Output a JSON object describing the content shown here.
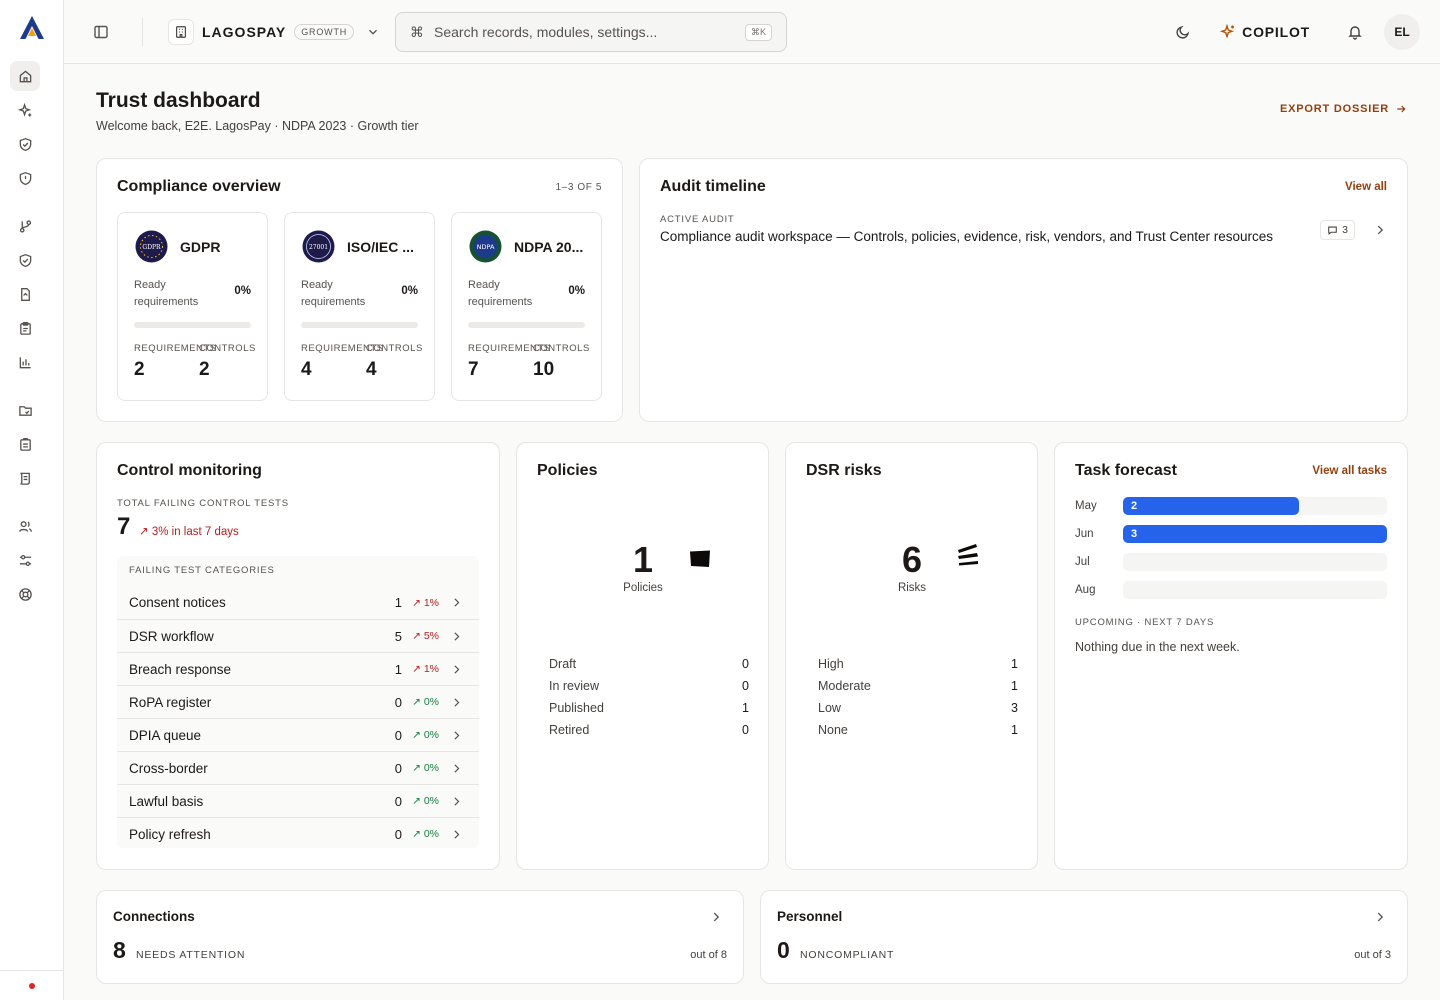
{
  "app": {
    "org_name": "LAGOSPAY",
    "plan": "GROWTH",
    "brand_color": "#1e40af",
    "accent_color": "#f59e0b"
  },
  "search": {
    "placeholder": "Search records, modules, settings...",
    "shortcut": "⌘K"
  },
  "topbar": {
    "copilot_label": "COPILOT",
    "avatar_initials": "EL"
  },
  "page": {
    "title": "Trust dashboard",
    "subtitle": "Welcome back, E2E. LagosPay · NDPA 2023 · Growth tier",
    "export_label": "EXPORT DOSSIER"
  },
  "compliance": {
    "title": "Compliance overview",
    "count": "1–3 OF 5",
    "ready_label": "Ready requirements",
    "req_label": "REQUIREMENTS",
    "ctl_label": "CONTROLS",
    "frameworks": [
      {
        "name": "GDPR",
        "ready_pct": "0%",
        "ready_fraction": 0,
        "requirements": "2",
        "controls": "2"
      },
      {
        "name": "ISO/IEC ...",
        "ready_pct": "0%",
        "ready_fraction": 0,
        "requirements": "4",
        "controls": "4"
      },
      {
        "name": "NDPA 20...",
        "ready_pct": "0%",
        "ready_fraction": 0,
        "requirements": "7",
        "controls": "10"
      }
    ]
  },
  "audit": {
    "title": "Audit timeline",
    "view_all": "View all",
    "kicker": "ACTIVE AUDIT",
    "item_title": "Compliance audit workspace — Controls, policies, evidence, risk, vendors, and Trust Center resources",
    "comment_count": "3"
  },
  "control_monitoring": {
    "title": "Control monitoring",
    "kicker": "TOTAL FAILING CONTROL TESTS",
    "total": "7",
    "trend": "3% in last 7 days",
    "categories_label": "FAILING TEST CATEGORIES",
    "rows": [
      {
        "name": "Consent notices",
        "count": "1",
        "trend": "1%",
        "status": "up"
      },
      {
        "name": "DSR workflow",
        "count": "5",
        "trend": "5%",
        "status": "up"
      },
      {
        "name": "Breach response",
        "count": "1",
        "trend": "1%",
        "status": "up"
      },
      {
        "name": "RoPA register",
        "count": "0",
        "trend": "0%",
        "status": "ok"
      },
      {
        "name": "DPIA queue",
        "count": "0",
        "trend": "0%",
        "status": "ok"
      },
      {
        "name": "Cross-border",
        "count": "0",
        "trend": "0%",
        "status": "ok"
      },
      {
        "name": "Lawful basis",
        "count": "0",
        "trend": "0%",
        "status": "ok"
      },
      {
        "name": "Policy refresh",
        "count": "0",
        "trend": "0%",
        "status": "ok"
      }
    ]
  },
  "policies": {
    "title": "Policies",
    "total": "1",
    "total_label": "Policies",
    "rows": [
      {
        "label": "Draft",
        "value": "0"
      },
      {
        "label": "In review",
        "value": "0"
      },
      {
        "label": "Published",
        "value": "1"
      },
      {
        "label": "Retired",
        "value": "0"
      }
    ]
  },
  "dsr": {
    "title": "DSR risks",
    "total": "6",
    "total_label": "Risks",
    "rows": [
      {
        "label": "High",
        "value": "1"
      },
      {
        "label": "Moderate",
        "value": "1"
      },
      {
        "label": "Low",
        "value": "3"
      },
      {
        "label": "None",
        "value": "1"
      }
    ]
  },
  "tasks": {
    "title": "Task forecast",
    "view_all": "View all tasks",
    "months": [
      {
        "month": "May",
        "count": "2",
        "fraction": 0.667
      },
      {
        "month": "Jun",
        "count": "3",
        "fraction": 1
      },
      {
        "month": "Jul",
        "count": "",
        "fraction": 0
      },
      {
        "month": "Aug",
        "count": "",
        "fraction": 0
      }
    ],
    "upcoming_label": "UPCOMING · NEXT 7 DAYS",
    "empty_text": "Nothing due in the next week."
  },
  "connections": {
    "title": "Connections",
    "value": "8",
    "label": "NEEDS ATTENTION",
    "out_of": "out of 8"
  },
  "personnel": {
    "title": "Personnel",
    "value": "0",
    "label": "NONCOMPLIANT",
    "out_of": "out of 3"
  }
}
